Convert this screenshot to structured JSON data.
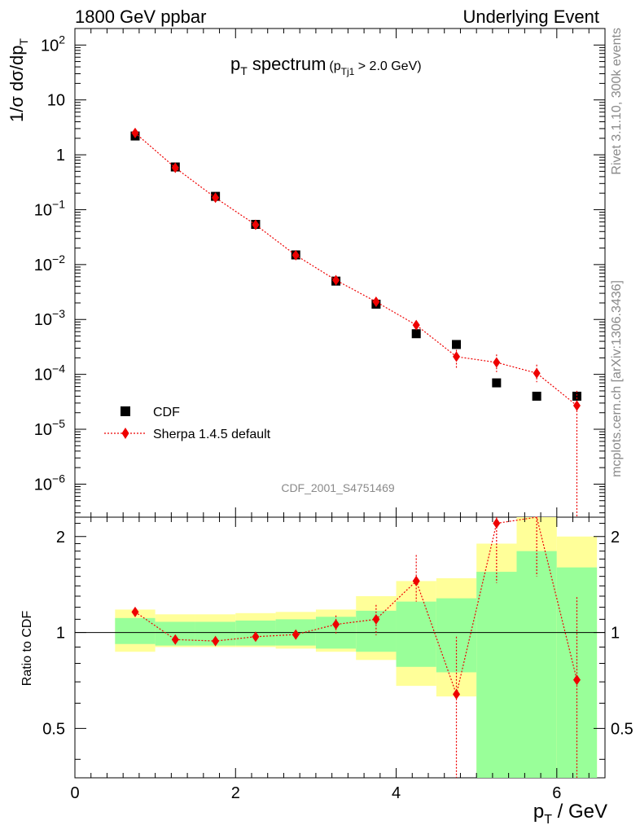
{
  "header": {
    "left": "1800 GeV ppbar",
    "right": "Underlying Event"
  },
  "side": {
    "top": "Rivet 3.1.10,  300k events",
    "bottom": "mcplots.cern.ch [arXiv:1306.3436]"
  },
  "plot_title": {
    "main_p": "p",
    "main_sub": "T",
    "main_rest": " spectrum",
    "cond_open": "(p",
    "cond_sub": "Tj1",
    "cond_rest": " > 2.0 GeV)"
  },
  "analysis_tag": "CDF_2001_S4751469",
  "legend": {
    "data_label": "CDF",
    "mc_label": "Sherpa 1.4.5 default"
  },
  "axes": {
    "ylabel_main": "1/σ dσ/dp",
    "ylabel_main_sub": "T",
    "ylabel_ratio": "Ratio to CDF",
    "xlabel_p": "p",
    "xlabel_sub": "T",
    "xlabel_rest": " / GeV",
    "x_ticks": [
      "0",
      "2",
      "4",
      "6"
    ],
    "y_ticks_main": [
      {
        "base": "10",
        "exp": "2"
      },
      {
        "base": "10",
        "exp": ""
      },
      {
        "base": "1",
        "exp": ""
      },
      {
        "base": "10",
        "exp": "−1"
      },
      {
        "base": "10",
        "exp": "−2"
      },
      {
        "base": "10",
        "exp": "−3"
      },
      {
        "base": "10",
        "exp": "−4"
      },
      {
        "base": "10",
        "exp": "−5"
      },
      {
        "base": "10",
        "exp": "−6"
      }
    ],
    "y_ticks_ratio": [
      "2",
      "1",
      "0.5"
    ]
  },
  "colors": {
    "data": "#000000",
    "mc": "#ee0000",
    "band_outer": "#ffff99",
    "band_inner": "#99ff99"
  },
  "chart_data": {
    "type": "scatter",
    "x_range": [
      0,
      6.6
    ],
    "y_scale": "log",
    "y_range_main": [
      2.5e-07,
      200
    ],
    "y_range_ratio": [
      0.35,
      2.3
    ],
    "ratio_scale": "log",
    "bin_edges": [
      0.5,
      1.0,
      1.5,
      2.0,
      2.5,
      3.0,
      3.5,
      4.0,
      4.5,
      5.0,
      5.5,
      6.0,
      6.5
    ],
    "x": [
      0.75,
      1.25,
      1.75,
      2.25,
      2.75,
      3.25,
      3.75,
      4.25,
      4.75,
      5.25,
      5.75,
      6.25
    ],
    "series": [
      {
        "name": "CDF",
        "values": [
          2.2,
          0.6,
          0.175,
          0.054,
          0.015,
          0.005,
          0.0019,
          0.00055,
          0.00035,
          7e-05,
          4e-05,
          4e-05
        ]
      },
      {
        "name": "Sherpa 1.4.5 default",
        "values": [
          2.5,
          0.58,
          0.165,
          0.053,
          0.0148,
          0.0052,
          0.0021,
          0.00079,
          0.00021,
          0.000165,
          0.000105,
          2.7e-05
        ],
        "err_low": [
          2.45,
          0.57,
          0.162,
          0.052,
          0.0145,
          0.0049,
          0.0019,
          0.00068,
          0.00013,
          0.00011,
          7.2e-05,
          1e-09
        ],
        "err_high": [
          2.55,
          0.59,
          0.168,
          0.054,
          0.0151,
          0.0055,
          0.0023,
          0.00092,
          0.00028,
          0.00023,
          0.00015,
          5e-05
        ]
      }
    ],
    "ratio": {
      "values": [
        1.16,
        0.95,
        0.94,
        0.97,
        0.985,
        1.06,
        1.1,
        1.45,
        0.64,
        2.2,
        2.5,
        0.71
      ],
      "err_low": [
        1.14,
        0.94,
        0.93,
        0.96,
        0.96,
        0.99,
        0.98,
        1.25,
        0.3,
        1.43,
        1.5,
        0.3
      ],
      "err_high": [
        1.18,
        0.96,
        0.95,
        0.98,
        1.01,
        1.13,
        1.22,
        1.75,
        0.97,
        2.5,
        2.5,
        1.29
      ],
      "band_outer_low": [
        0.87,
        0.9,
        0.9,
        0.9,
        0.89,
        0.87,
        0.82,
        0.68,
        0.63,
        0.3,
        0.3,
        0.3
      ],
      "band_outer_high": [
        1.18,
        1.14,
        1.14,
        1.15,
        1.16,
        1.18,
        1.3,
        1.45,
        1.48,
        1.9,
        2.3,
        2.0
      ],
      "band_inner_low": [
        0.92,
        0.91,
        0.91,
        0.91,
        0.91,
        0.89,
        0.87,
        0.78,
        0.75,
        0.3,
        0.3,
        0.3
      ],
      "band_inner_high": [
        1.11,
        1.08,
        1.08,
        1.09,
        1.1,
        1.12,
        1.17,
        1.25,
        1.28,
        1.55,
        1.8,
        1.6
      ]
    }
  }
}
